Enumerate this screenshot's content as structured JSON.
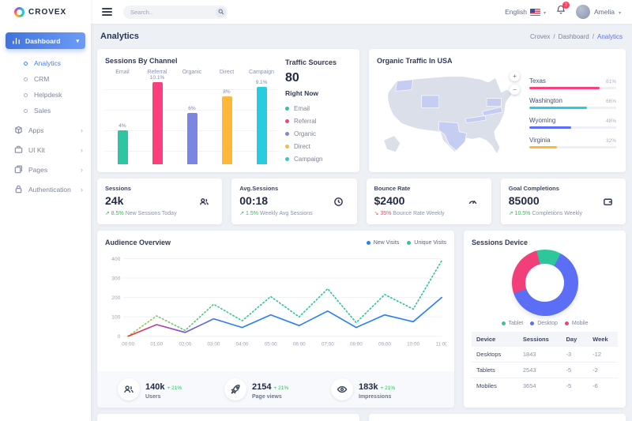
{
  "brand": {
    "name": "CROVEX"
  },
  "topbar": {
    "search_placeholder": "Search..",
    "language": "English",
    "notification_count": "3",
    "user_name": "Amelia"
  },
  "sidebar": {
    "dashboard_label": "Dashboard",
    "dashboard_children": [
      {
        "label": "Analytics"
      },
      {
        "label": "CRM"
      },
      {
        "label": "Helpdesk"
      },
      {
        "label": "Sales"
      }
    ],
    "sections": [
      {
        "label": "Apps"
      },
      {
        "label": "UI Kit"
      },
      {
        "label": "Pages"
      },
      {
        "label": "Authentication"
      }
    ]
  },
  "page": {
    "title": "Analytics",
    "breadcrumb": [
      "Crovex",
      "Dashboard",
      "Analytics"
    ],
    "sep": "/"
  },
  "sessions_by_channel": {
    "type": "bar",
    "title": "Sessions By Channel",
    "categories": [
      "Email",
      "Referral",
      "Organic",
      "Direct",
      "Campaign"
    ],
    "values": [
      4,
      10.1,
      6,
      8,
      9.1
    ],
    "labels": [
      "4%",
      "10.1%",
      "6%",
      "8%",
      "9.1%"
    ],
    "colors": [
      "#2ec5a4",
      "#fb3e7c",
      "#7b86e2",
      "#fdb839",
      "#27cce0"
    ],
    "ymax": 10.5
  },
  "traffic_sources": {
    "title": "Traffic Sources",
    "value": "80",
    "subtitle": "Right Now",
    "items": [
      {
        "label": "Email",
        "color": "#2ec5a4"
      },
      {
        "label": "Referral",
        "color": "#fb3e7c"
      },
      {
        "label": "Organic",
        "color": "#7b86e2"
      },
      {
        "label": "Direct",
        "color": "#fdb839"
      },
      {
        "label": "Campaign",
        "color": "#27cce0"
      }
    ]
  },
  "organic_traffic": {
    "title": "Organic Traffic In USA",
    "zoom_in": "+",
    "zoom_out": "−",
    "states": [
      {
        "name": "Texas",
        "value": "81%",
        "pct": 81,
        "color": "#fb3e7c"
      },
      {
        "name": "Washington",
        "value": "66%",
        "pct": 66,
        "color": "#27cce0"
      },
      {
        "name": "Wyoming",
        "value": "48%",
        "pct": 48,
        "color": "#5b6ef5"
      },
      {
        "name": "Virginia",
        "value": "32%",
        "pct": 32,
        "color": "#fdb839"
      }
    ]
  },
  "stat_cards": [
    {
      "title": "Sessions",
      "value": "24k",
      "trend": "↗ 8.5%",
      "trend_dir": "up",
      "caption": "New Sessions Today",
      "icon": "users",
      "icon_color": "#7c8cf8",
      "icon_bg": "#eef0fe"
    },
    {
      "title": "Avg.Sessions",
      "value": "00:18",
      "trend": "↗ 1.5%",
      "trend_dir": "up",
      "caption": "Weekly Avg Sessions",
      "icon": "clock",
      "icon_color": "#f5536c",
      "icon_bg": "#fdeef1"
    },
    {
      "title": "Bounce Rate",
      "value": "$2400",
      "trend": "↘ 35%",
      "trend_dir": "down",
      "caption": "Bounce Rate Weekly",
      "icon": "gauge",
      "icon_color": "#29c8e0",
      "icon_bg": "#e6f9fc"
    },
    {
      "title": "Goal Completions",
      "value": "85000",
      "trend": "↗ 10.5%",
      "trend_dir": "up",
      "caption": "Completions Weekly",
      "icon": "wallet",
      "icon_color": "#f7b733",
      "icon_bg": "#fdf3dd"
    }
  ],
  "audience_overview": {
    "type": "line",
    "title": "Audience Overview",
    "x_labels": [
      "00:00",
      "01:00",
      "02:00",
      "03:00",
      "04:00",
      "05:00",
      "06:00",
      "07:00",
      "08:00",
      "09:00",
      "10:00",
      "11:00"
    ],
    "y_ticks": [
      0,
      100,
      200,
      300,
      400
    ],
    "ylim": [
      0,
      420
    ],
    "series": [
      {
        "name": "New Visits",
        "style": "solid",
        "color": "#2a7ff6",
        "gradient": [
          {
            "o": "0%",
            "c": "#f03b4e"
          },
          {
            "o": "18%",
            "c": "#8250d8"
          },
          {
            "o": "32%",
            "c": "#2a7ff6"
          },
          {
            "o": "100%",
            "c": "#2a7ff6"
          }
        ],
        "values": [
          0,
          60,
          20,
          90,
          45,
          110,
          55,
          130,
          45,
          110,
          75,
          200
        ]
      },
      {
        "name": "Unique Visits",
        "style": "dotted",
        "color": "#2bc79b",
        "gradient": [
          {
            "o": "0%",
            "c": "#a9c94f"
          },
          {
            "o": "22%",
            "c": "#5fc77c"
          },
          {
            "o": "40%",
            "c": "#2bc79b"
          },
          {
            "o": "100%",
            "c": "#2bc79b"
          }
        ],
        "values": [
          0,
          105,
          30,
          165,
          80,
          205,
          100,
          245,
          70,
          215,
          140,
          390
        ]
      }
    ],
    "footer_stats": [
      {
        "value": "140k",
        "delta": "+ 21%",
        "label": "Users",
        "icon": "users"
      },
      {
        "value": "2154",
        "delta": "+ 21%",
        "label": "Page views",
        "icon": "rocket"
      },
      {
        "value": "183k",
        "delta": "+ 21%",
        "label": "Impressions",
        "icon": "eye"
      }
    ]
  },
  "sessions_device": {
    "title": "Sessions Device",
    "type": "donut",
    "slices": [
      {
        "label": "Tablet",
        "value": 12,
        "color": "#2dc79b"
      },
      {
        "label": "Desktop",
        "value": 62,
        "color": "#5b6ef5"
      },
      {
        "label": "Mobile",
        "value": 26,
        "color": "#f23f79"
      }
    ],
    "table": {
      "headers": [
        "Device",
        "Sessions",
        "Day",
        "Week"
      ],
      "rows": [
        [
          "Desktops",
          "1843",
          "-3",
          "-12"
        ],
        [
          "Tablets",
          "2543",
          "-5",
          "-2"
        ],
        [
          "Mobiles",
          "3654",
          "-5",
          "-6"
        ]
      ]
    }
  }
}
